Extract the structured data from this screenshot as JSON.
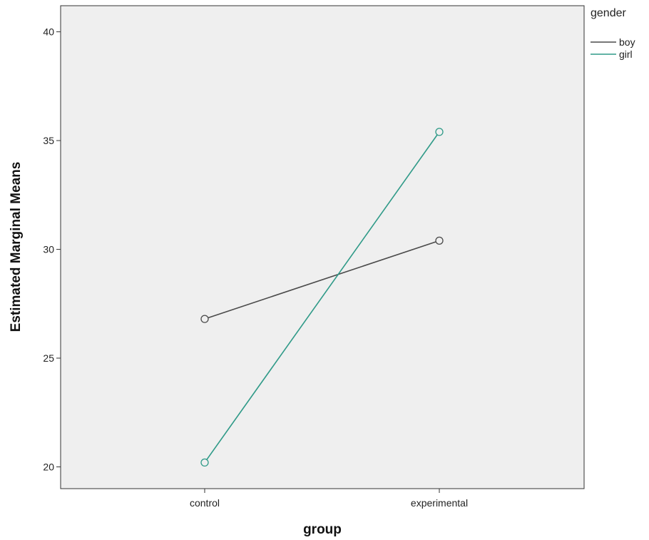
{
  "chart_data": {
    "type": "line",
    "categories": [
      "control",
      "experimental"
    ],
    "series": [
      {
        "name": "boy",
        "values": [
          26.8,
          30.4
        ],
        "color": "#4a4a4a"
      },
      {
        "name": "girl",
        "values": [
          20.2,
          35.4
        ],
        "color": "#2f9a88"
      }
    ],
    "xlabel": "group",
    "ylabel": "Estimated Marginal Means",
    "ylim": [
      19.0,
      41.2
    ],
    "yticks": [
      20,
      25,
      30,
      35,
      40
    ],
    "legend_title": "gender",
    "legend_position": "top-right",
    "grid": false,
    "plot_background": "#efefef"
  }
}
